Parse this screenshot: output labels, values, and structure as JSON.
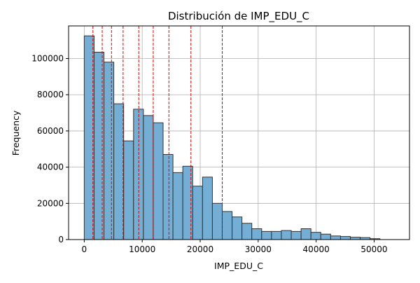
{
  "chart_data": {
    "type": "bar",
    "title": "Distribución de IMP_EDU_C",
    "xlabel": "IMP_EDU_C",
    "ylabel": "Frequency",
    "xlim": [
      -2700,
      56100
    ],
    "ylim": [
      0,
      118000
    ],
    "x_ticks": [
      0,
      10000,
      20000,
      30000,
      40000,
      50000
    ],
    "y_ticks": [
      0,
      20000,
      40000,
      60000,
      80000,
      100000
    ],
    "grid": true,
    "bin_width": 1700,
    "bin_start": 0,
    "values": [
      112500,
      103500,
      98000,
      75000,
      54500,
      72000,
      68500,
      64500,
      47000,
      37000,
      40500,
      29500,
      34500,
      20000,
      15500,
      12500,
      9000,
      6000,
      4500,
      4500,
      5000,
      4500,
      6000,
      4000,
      3000,
      2000,
      1700,
      1300,
      1100,
      500
    ],
    "reference_lines": [
      1500,
      3100,
      4700,
      6700,
      9400,
      11900,
      14600,
      18400,
      23800
    ],
    "colors": {
      "bar_fill": "#75AED4",
      "bar_edge": "#333333",
      "reference_line": "#DD0000",
      "grid": "#B0B0B0"
    }
  }
}
